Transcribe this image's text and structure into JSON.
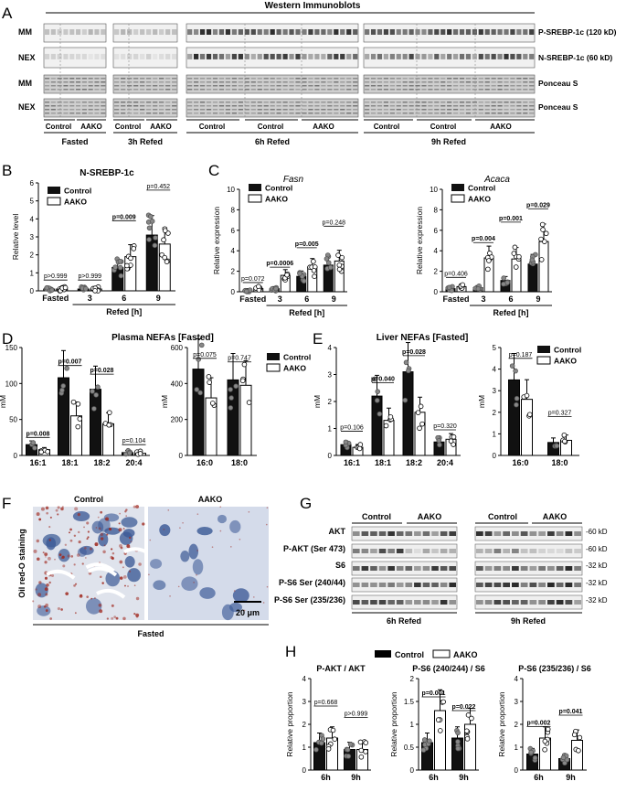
{
  "panel_letters": [
    "A",
    "B",
    "C",
    "D",
    "E",
    "F",
    "G",
    "H"
  ],
  "western": {
    "title": "Western Immunoblots",
    "row_labels": [
      "MM",
      "NEX",
      "MM",
      "NEX"
    ],
    "right_labels": [
      "P-SREBP-1c (120 kD)",
      "N-SREBP-1c (60 kD)",
      "Ponceau S",
      "Ponceau S"
    ],
    "groups": [
      "Control",
      "AAKO"
    ],
    "time_labels": [
      "Fasted",
      "3h Refed",
      "6h Refed",
      "9h Refed"
    ]
  },
  "panel_B": {
    "title": "N-SREBP-1c",
    "ylabel": "Relative level",
    "xlabel": "Refed [h]",
    "ticks_x": [
      "Fasted",
      "3",
      "6",
      "9"
    ],
    "pvals": [
      "p>0.999",
      "p>0.999",
      "p=0.009",
      "p=0.452"
    ],
    "legend": [
      "Control",
      "AAKO"
    ]
  },
  "panel_C1": {
    "title": "Fasn",
    "ylabel": "Relative expression",
    "xlabel": "Refed [h]",
    "ticks_x": [
      "Fasted",
      "3",
      "6",
      "9"
    ],
    "pvals": [
      "p=0.072",
      "p=0.0006",
      "p=0.005",
      "p=0.248"
    ],
    "legend": [
      "Control",
      "AAKO"
    ]
  },
  "panel_C2": {
    "title": "Acaca",
    "ylabel": "Relative expression",
    "xlabel": "Refed [h]",
    "ticks_x": [
      "Fasted",
      "3",
      "6",
      "9"
    ],
    "pvals": [
      "p=0.406",
      "p=0.004",
      "p=0.001",
      "p=0.029"
    ],
    "legend": [
      "Control",
      "AAKO"
    ]
  },
  "panel_D": {
    "title": "Plasma NEFAs [Fasted]",
    "ylabel": "mM",
    "ticks_x1": [
      "16:1",
      "18:1",
      "18:2",
      "20:4"
    ],
    "ticks_x2": [
      "16:0",
      "18:0"
    ],
    "pvals1": [
      "p=0.008",
      "p=0.007",
      "p=0.028",
      "p=0.104"
    ],
    "pvals2": [
      "p=0.075",
      "p=0.747"
    ],
    "legend": [
      "Control",
      "AAKO"
    ]
  },
  "panel_E": {
    "title": "Liver NEFAs [Fasted]",
    "ylabel": "mM",
    "ticks_x1": [
      "16:1",
      "18:1",
      "18:2",
      "20:4"
    ],
    "ticks_x2": [
      "16:0",
      "18:0"
    ],
    "pvals1": [
      "p=0.106",
      "p=0.040",
      "p=0.028",
      "p=0.320"
    ],
    "pvals2": [
      "p=0.187",
      "p=0.327"
    ],
    "legend": [
      "Control",
      "AAKO"
    ]
  },
  "panel_F": {
    "groups": [
      "Control",
      "AAKO"
    ],
    "side_label": "Oil red-O staining",
    "scale": "20 μm",
    "bottom": "Fasted"
  },
  "panel_G": {
    "groups": [
      "Control",
      "AAKO"
    ],
    "row_labels": [
      "AKT",
      "P-AKT (Ser 473)",
      "S6",
      "P-S6 Ser (240/44)",
      "P-S6 Ser (235/236)"
    ],
    "kd": [
      "-60 kD",
      "-60 kD",
      "-32 kD",
      "-32 kD",
      "-32 kD"
    ],
    "times": [
      "6h Refed",
      "9h Refed"
    ]
  },
  "panel_H": {
    "legend": [
      "Control",
      "AAKO"
    ],
    "ylabel": "Relative proportion",
    "charts": [
      {
        "title": "P-AKT / AKT",
        "pvals": [
          "p=0.668",
          "p>0.999"
        ],
        "ticks": [
          "6h",
          "9h"
        ]
      },
      {
        "title": "P-S6 (240/244) / S6",
        "pvals": [
          "p=0.001",
          "p=0.022"
        ],
        "ticks": [
          "6h",
          "9h"
        ]
      },
      {
        "title": "P-S6 (235/236) / S6",
        "pvals": [
          "p=0.002",
          "p=0.041"
        ],
        "ticks": [
          "6h",
          "9h"
        ]
      }
    ]
  },
  "chart_data": [
    {
      "type": "bar",
      "title": "N-SREBP-1c",
      "ylabel": "Relative level",
      "xlabel": "Refed [h]",
      "categories": [
        "Fasted",
        "3",
        "6",
        "9"
      ],
      "ylim": [
        0,
        6
      ],
      "series": [
        {
          "name": "Control",
          "values": [
            0.1,
            0.1,
            1.3,
            3.1
          ]
        },
        {
          "name": "AAKO",
          "values": [
            0.1,
            0.1,
            1.9,
            2.6
          ]
        }
      ]
    },
    {
      "type": "bar",
      "title": "Fasn",
      "ylabel": "Relative expression",
      "xlabel": "Refed [h]",
      "categories": [
        "Fasted",
        "3",
        "6",
        "9"
      ],
      "ylim": [
        0,
        10
      ],
      "series": [
        {
          "name": "Control",
          "values": [
            0.1,
            0.3,
            1.5,
            2.6
          ]
        },
        {
          "name": "AAKO",
          "values": [
            0.3,
            1.6,
            2.4,
            3.0
          ]
        }
      ]
    },
    {
      "type": "bar",
      "title": "Acaca",
      "ylabel": "Relative expression",
      "xlabel": "Refed [h]",
      "categories": [
        "Fasted",
        "3",
        "6",
        "9"
      ],
      "ylim": [
        0,
        10
      ],
      "series": [
        {
          "name": "Control",
          "values": [
            0.3,
            0.4,
            1.1,
            2.7
          ]
        },
        {
          "name": "AAKO",
          "values": [
            0.5,
            3.3,
            3.2,
            4.9
          ]
        }
      ]
    },
    {
      "type": "bar",
      "title": "Plasma NEFAs [Fasted]",
      "ylabel": "mM",
      "categories": [
        "16:1",
        "18:1",
        "18:2",
        "20:4"
      ],
      "ylim": [
        0,
        150
      ],
      "series": [
        {
          "name": "Control",
          "values": [
            15,
            108,
            92,
            4
          ]
        },
        {
          "name": "AAKO",
          "values": [
            8,
            55,
            44,
            3
          ]
        }
      ]
    },
    {
      "type": "bar",
      "ylabel": "mM",
      "categories": [
        "16:0",
        "18:0"
      ],
      "ylim": [
        0,
        600
      ],
      "series": [
        {
          "name": "Control",
          "values": [
            480,
            420
          ]
        },
        {
          "name": "AAKO",
          "values": [
            320,
            390
          ]
        }
      ]
    },
    {
      "type": "bar",
      "title": "Liver NEFAs [Fasted]",
      "ylabel": "mM",
      "categories": [
        "16:1",
        "18:1",
        "18:2",
        "20:4"
      ],
      "ylim": [
        0,
        4
      ],
      "series": [
        {
          "name": "Control",
          "values": [
            0.4,
            2.2,
            3.1,
            0.5
          ]
        },
        {
          "name": "AAKO",
          "values": [
            0.3,
            1.3,
            1.6,
            0.6
          ]
        }
      ]
    },
    {
      "type": "bar",
      "ylabel": "mM",
      "categories": [
        "16:0",
        "18:0"
      ],
      "ylim": [
        0,
        5
      ],
      "series": [
        {
          "name": "Control",
          "values": [
            3.5,
            0.6
          ]
        },
        {
          "name": "AAKO",
          "values": [
            2.6,
            0.7
          ]
        }
      ]
    },
    {
      "type": "bar",
      "title": "P-AKT / AKT",
      "ylabel": "Relative proportion",
      "categories": [
        "6h",
        "9h"
      ],
      "ylim": [
        0,
        4
      ],
      "series": [
        {
          "name": "Control",
          "values": [
            1.2,
            0.9
          ]
        },
        {
          "name": "AAKO",
          "values": [
            1.4,
            0.9
          ]
        }
      ]
    },
    {
      "type": "bar",
      "title": "P-S6 (240/244) / S6",
      "ylabel": "Relative proportion",
      "categories": [
        "6h",
        "9h"
      ],
      "ylim": [
        0,
        2.0
      ],
      "series": [
        {
          "name": "Control",
          "values": [
            0.6,
            0.7
          ]
        },
        {
          "name": "AAKO",
          "values": [
            1.3,
            1.0
          ]
        }
      ]
    },
    {
      "type": "bar",
      "title": "P-S6 (235/236) / S6",
      "ylabel": "Relative proportion",
      "categories": [
        "6h",
        "9h"
      ],
      "ylim": [
        0,
        4
      ],
      "series": [
        {
          "name": "Control",
          "values": [
            0.7,
            0.5
          ]
        },
        {
          "name": "AAKO",
          "values": [
            1.4,
            1.3
          ]
        }
      ]
    }
  ]
}
